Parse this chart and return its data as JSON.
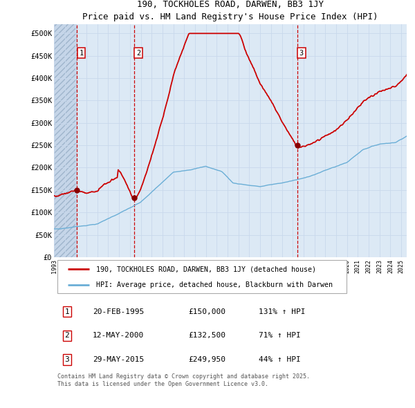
{
  "title": "190, TOCKHOLES ROAD, DARWEN, BB3 1JY",
  "subtitle": "Price paid vs. HM Land Registry's House Price Index (HPI)",
  "ylim": [
    0,
    520000
  ],
  "yticks": [
    0,
    50000,
    100000,
    150000,
    200000,
    250000,
    300000,
    350000,
    400000,
    450000,
    500000
  ],
  "ytick_labels": [
    "£0",
    "£50K",
    "£100K",
    "£150K",
    "£200K",
    "£250K",
    "£300K",
    "£350K",
    "£400K",
    "£450K",
    "£500K"
  ],
  "hpi_color": "#6aaed6",
  "price_color": "#cc0000",
  "marker_color": "#880000",
  "grid_color": "#c8d8ec",
  "bg_color": "#dce9f5",
  "vline_red_color": "#cc0000",
  "sale1_date": 1995.12,
  "sale1_price": 150000,
  "sale2_date": 2000.37,
  "sale2_price": 132500,
  "sale3_date": 2015.41,
  "sale3_price": 249950,
  "legend_line1": "190, TOCKHOLES ROAD, DARWEN, BB3 1JY (detached house)",
  "legend_line2": "HPI: Average price, detached house, Blackburn with Darwen",
  "table_entries": [
    {
      "num": "1",
      "date": "20-FEB-1995",
      "price": "£150,000",
      "hpi": "131% ↑ HPI"
    },
    {
      "num": "2",
      "date": "12-MAY-2000",
      "price": "£132,500",
      "hpi": "71% ↑ HPI"
    },
    {
      "num": "3",
      "date": "29-MAY-2015",
      "price": "£249,950",
      "hpi": "44% ↑ HPI"
    }
  ],
  "footnote": "Contains HM Land Registry data © Crown copyright and database right 2025.\nThis data is licensed under the Open Government Licence v3.0.",
  "xmin": 1993.0,
  "xmax": 2025.5
}
